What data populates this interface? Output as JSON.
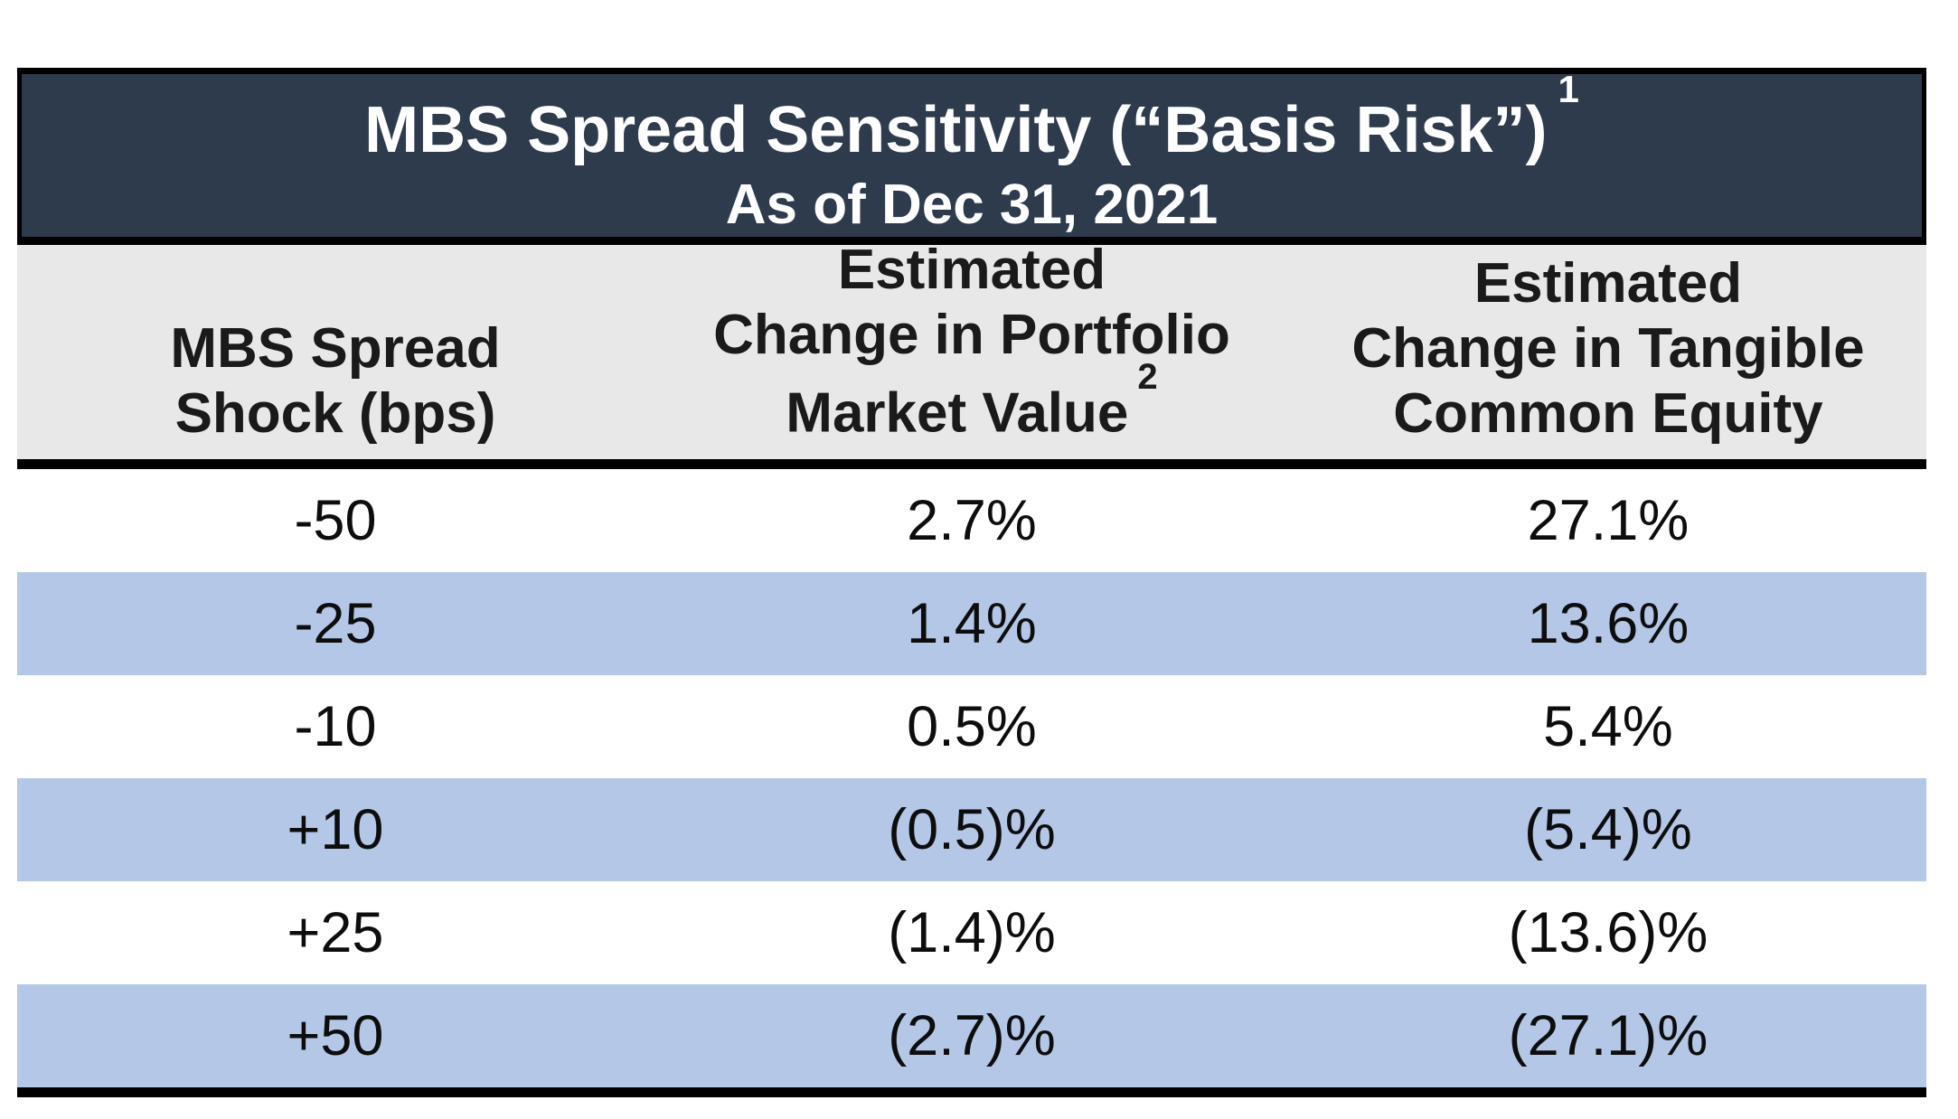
{
  "table": {
    "title": "MBS Spread Sensitivity (“Basis Risk”)",
    "title_superscript": "1",
    "subtitle": "As of Dec 31, 2021",
    "columns": [
      {
        "lines": [
          "MBS Spread",
          "Shock (bps)"
        ]
      },
      {
        "lines": [
          "Estimated",
          "Change in Portfolio",
          "Market Value"
        ],
        "superscript": "2"
      },
      {
        "lines": [
          "Estimated",
          "Change in Tangible",
          "Common Equity"
        ]
      }
    ],
    "rows": [
      {
        "shock": "-50",
        "portfolio": "2.7%",
        "equity": "27.1%"
      },
      {
        "shock": "-25",
        "portfolio": "1.4%",
        "equity": "13.6%"
      },
      {
        "shock": "-10",
        "portfolio": "0.5%",
        "equity": "5.4%"
      },
      {
        "shock": "+10",
        "portfolio": "(0.5)%",
        "equity": "(5.4)%"
      },
      {
        "shock": "+25",
        "portfolio": "(1.4)%",
        "equity": "(13.6)%"
      },
      {
        "shock": "+50",
        "portfolio": "(2.7)%",
        "equity": "(27.1)%"
      }
    ],
    "colors": {
      "title_bar_bg": "#2e3b4d",
      "title_text": "#ffffff",
      "header_bg": "#e8e8e8",
      "row_bg": "#ffffff",
      "row_alt_bg": "#b4c7e7",
      "border": "#000000",
      "body_text": "#0d0d0d"
    }
  },
  "chart_data": {
    "type": "table",
    "title": "MBS Spread Sensitivity (“Basis Risk”) — As of Dec 31, 2021",
    "categories": [
      "-50",
      "-25",
      "-10",
      "+10",
      "+25",
      "+50"
    ],
    "series": [
      {
        "name": "Estimated Change in Portfolio Market Value",
        "values": [
          2.7,
          1.4,
          0.5,
          -0.5,
          -1.4,
          -2.7
        ]
      },
      {
        "name": "Estimated Change in Tangible Common Equity",
        "values": [
          27.1,
          13.6,
          5.4,
          -5.4,
          -13.6,
          -27.1
        ]
      }
    ],
    "xlabel": "MBS Spread Shock (bps)",
    "ylabel": "Percent change"
  }
}
